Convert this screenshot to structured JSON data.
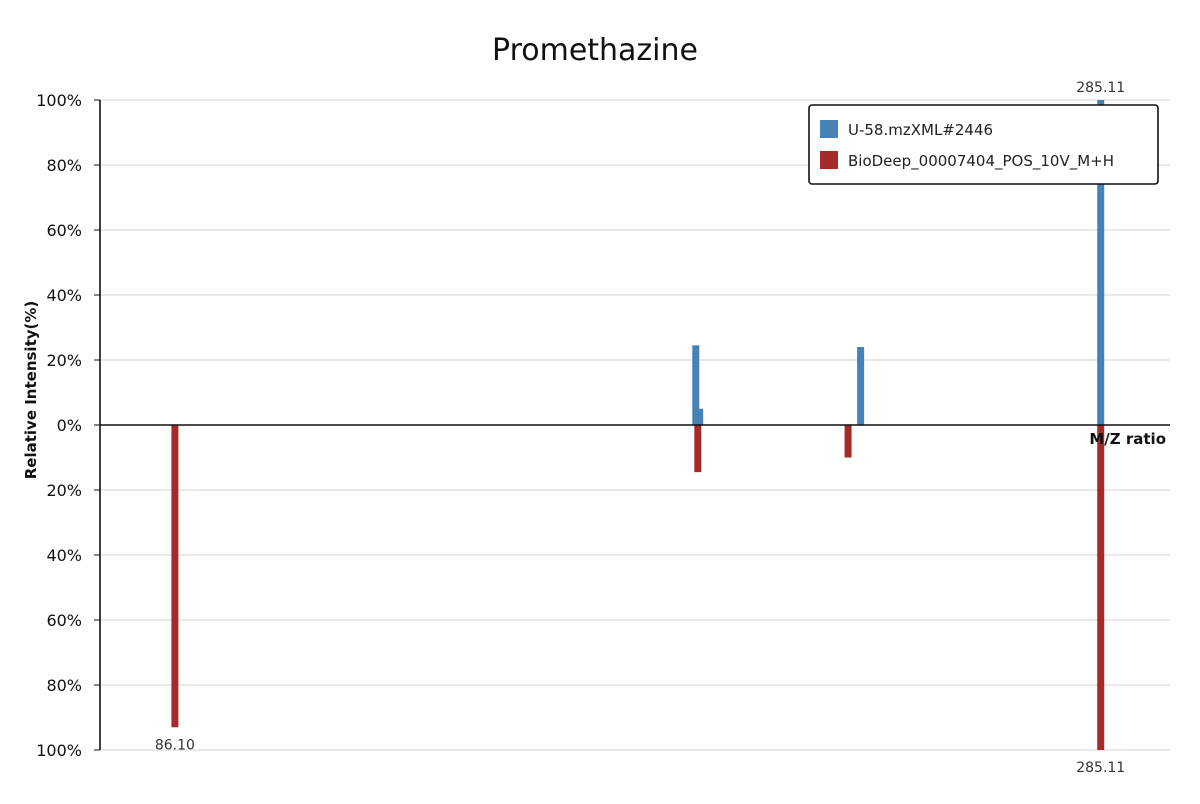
{
  "chart_data": {
    "type": "bar",
    "title": "Promethazine",
    "xlabel": "M/Z ratio",
    "ylabel": "Relative Intensity(%)",
    "xlim": [
      70,
      300
    ],
    "ylim_top": [
      0,
      100
    ],
    "ylim_bottom": [
      0,
      100
    ],
    "y_ticks_top": [
      "100%",
      "80%",
      "60%",
      "40%",
      "20%",
      "0%"
    ],
    "y_ticks_bottom": [
      "20%",
      "40%",
      "60%",
      "80%",
      "100%"
    ],
    "grid": true,
    "legend_position": "top-right",
    "series": [
      {
        "name": "U-58.mzXML#2446",
        "color": "#4682b4",
        "direction": "up",
        "peaks": [
          {
            "mz": 198.07,
            "intensity": 24.5,
            "label": ""
          },
          {
            "mz": 198.9,
            "intensity": 5.0,
            "label": ""
          },
          {
            "mz": 233.5,
            "intensity": 24.0,
            "label": ""
          },
          {
            "mz": 285.11,
            "intensity": 100,
            "label": "285.11"
          }
        ]
      },
      {
        "name": "BioDeep_00007404_POS_10V_M+H",
        "color": "#a52a2a",
        "direction": "down",
        "peaks": [
          {
            "mz": 86.1,
            "intensity": 93,
            "label": "86.10"
          },
          {
            "mz": 198.5,
            "intensity": 14.5,
            "label": ""
          },
          {
            "mz": 230.8,
            "intensity": 10.0,
            "label": ""
          },
          {
            "mz": 285.11,
            "intensity": 100,
            "label": "285.11"
          }
        ]
      }
    ]
  }
}
